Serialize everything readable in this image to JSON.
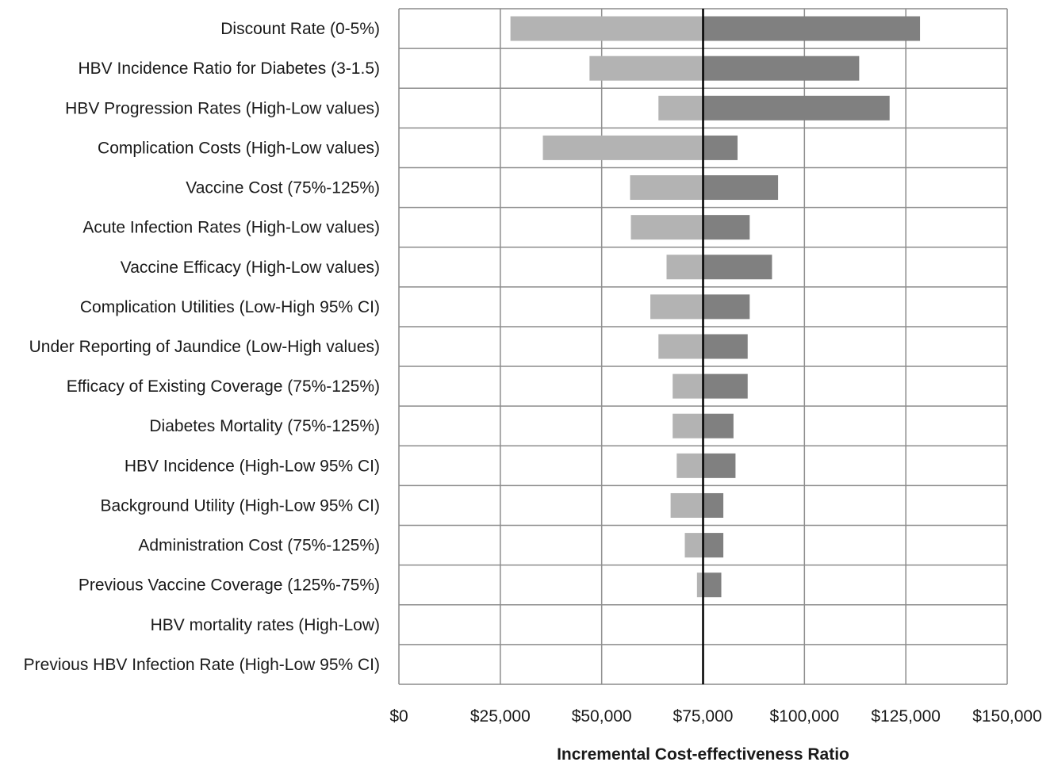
{
  "chart_data": {
    "type": "bar",
    "subtype": "tornado",
    "xlabel": "Incremental Cost-effectiveness Ratio",
    "ylabel": "",
    "title": "",
    "xlim": [
      0,
      150000
    ],
    "x_ticks": [
      0,
      25000,
      50000,
      75000,
      100000,
      125000,
      150000
    ],
    "x_tick_labels": [
      "$0",
      "$25,000",
      "$50,000",
      "$75,000",
      "$100,000",
      "$125,000",
      "$150,000"
    ],
    "baseline": 75000,
    "grid": true,
    "categories": [
      "Discount Rate (0-5%)",
      "HBV Incidence Ratio for Diabetes (3-1.5)",
      "HBV Progression Rates (High-Low values)",
      "Complication Costs (High-Low values)",
      "Vaccine Cost (75%-125%)",
      "Acute Infection Rates (High-Low values)",
      "Vaccine Efficacy (High-Low values)",
      "Complication Utilities (Low-High 95% CI)",
      "Under Reporting of Jaundice (Low-High values)",
      "Efficacy of Existing Coverage (75%-125%)",
      "Diabetes Mortality (75%-125%)",
      "HBV Incidence (High-Low 95% CI)",
      "Background Utility (High-Low 95% CI)",
      "Administration Cost (75%-125%)",
      "Previous Vaccine Coverage (125%-75%)",
      "HBV mortality rates (High-Low)",
      "Previous HBV Infection Rate (High-Low 95% CI)"
    ],
    "series": [
      {
        "color": "#b3b3b3",
        "values": [
          27500,
          47000,
          64000,
          35500,
          57000,
          57200,
          66000,
          62000,
          64000,
          67500,
          67500,
          68500,
          67000,
          70500,
          73500,
          75000,
          75000
        ]
      },
      {
        "color": "#808080",
        "values": [
          128500,
          113500,
          121000,
          83500,
          93500,
          86500,
          92000,
          86500,
          86000,
          86000,
          82500,
          83000,
          80000,
          80000,
          79500,
          75200,
          75200
        ]
      }
    ]
  }
}
